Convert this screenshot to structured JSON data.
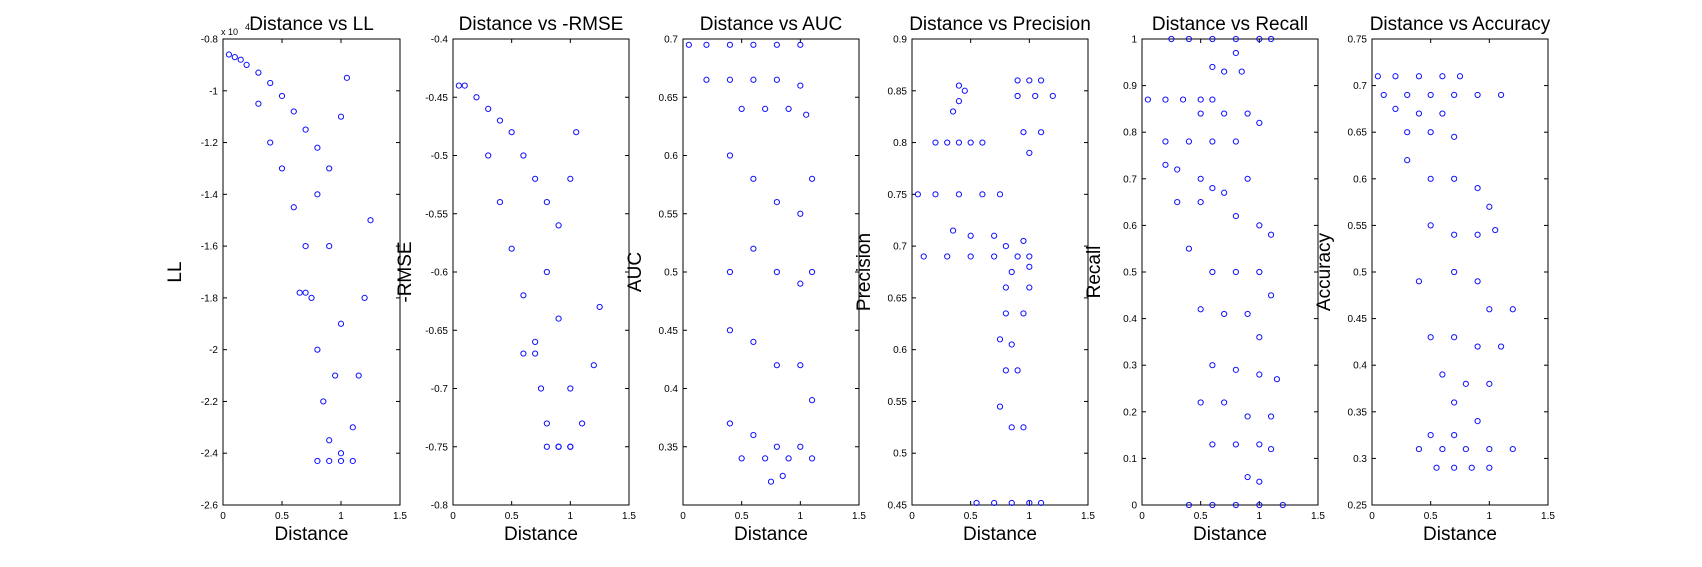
{
  "chart_data": [
    {
      "type": "scatter",
      "title": "Distance vs LL",
      "xlabel": "Distance",
      "ylabel": "LL",
      "y_multiplier_label": "x 10",
      "y_multiplier_exponent": "4",
      "xlim": [
        0,
        1.5
      ],
      "ylim": [
        -2.6,
        -0.8
      ],
      "xticks": [
        "0",
        "0.5",
        "1",
        "1.5"
      ],
      "yticks": [
        "-0.8",
        "-1",
        "-1.2",
        "-1.4",
        "-1.6",
        "-1.8",
        "-2",
        "-2.2",
        "-2.4",
        "-2.6"
      ],
      "color": "#1010ff",
      "grid": false,
      "points": [
        [
          0.05,
          -0.86
        ],
        [
          0.1,
          -0.87
        ],
        [
          0.15,
          -0.88
        ],
        [
          0.2,
          -0.9
        ],
        [
          0.3,
          -0.93
        ],
        [
          0.4,
          -0.97
        ],
        [
          0.5,
          -1.02
        ],
        [
          0.6,
          -1.08
        ],
        [
          0.7,
          -1.15
        ],
        [
          0.8,
          -1.22
        ],
        [
          0.9,
          -1.3
        ],
        [
          1.0,
          -1.1
        ],
        [
          1.05,
          -0.95
        ],
        [
          0.3,
          -1.05
        ],
        [
          0.4,
          -1.2
        ],
        [
          0.5,
          -1.3
        ],
        [
          0.6,
          -1.45
        ],
        [
          0.7,
          -1.6
        ],
        [
          0.75,
          -1.8
        ],
        [
          0.8,
          -2.0
        ],
        [
          0.85,
          -2.2
        ],
        [
          0.9,
          -2.35
        ],
        [
          1.0,
          -2.4
        ],
        [
          1.1,
          -2.3
        ],
        [
          1.15,
          -2.1
        ],
        [
          1.2,
          -1.8
        ],
        [
          1.25,
          -1.5
        ],
        [
          0.65,
          -1.78
        ],
        [
          0.7,
          -1.78
        ],
        [
          0.8,
          -1.4
        ],
        [
          0.9,
          -1.6
        ],
        [
          1.0,
          -1.9
        ],
        [
          0.95,
          -2.1
        ],
        [
          0.8,
          -2.43
        ],
        [
          0.9,
          -2.43
        ],
        [
          1.0,
          -2.43
        ],
        [
          1.1,
          -2.43
        ]
      ]
    },
    {
      "type": "scatter",
      "title": "Distance vs -RMSE",
      "xlabel": "Distance",
      "ylabel": "-RMSE",
      "xlim": [
        0,
        1.5
      ],
      "ylim": [
        -0.8,
        -0.4
      ],
      "xticks": [
        "0",
        "0.5",
        "1",
        "1.5"
      ],
      "yticks": [
        "-0.4",
        "-0.45",
        "-0.5",
        "-0.55",
        "-0.6",
        "-0.65",
        "-0.7",
        "-0.75",
        "-0.8"
      ],
      "color": "#1010ff",
      "grid": false,
      "points": [
        [
          0.05,
          -0.44
        ],
        [
          0.1,
          -0.44
        ],
        [
          0.2,
          -0.45
        ],
        [
          0.3,
          -0.46
        ],
        [
          0.4,
          -0.47
        ],
        [
          0.5,
          -0.48
        ],
        [
          0.6,
          -0.5
        ],
        [
          0.7,
          -0.52
        ],
        [
          0.8,
          -0.54
        ],
        [
          0.9,
          -0.56
        ],
        [
          1.0,
          -0.52
        ],
        [
          1.05,
          -0.48
        ],
        [
          0.3,
          -0.5
        ],
        [
          0.4,
          -0.54
        ],
        [
          0.5,
          -0.58
        ],
        [
          0.6,
          -0.62
        ],
        [
          0.7,
          -0.66
        ],
        [
          0.75,
          -0.7
        ],
        [
          0.8,
          -0.73
        ],
        [
          0.9,
          -0.75
        ],
        [
          1.0,
          -0.75
        ],
        [
          1.1,
          -0.73
        ],
        [
          1.2,
          -0.68
        ],
        [
          1.25,
          -0.63
        ],
        [
          0.6,
          -0.67
        ],
        [
          0.7,
          -0.67
        ],
        [
          0.8,
          -0.6
        ],
        [
          0.9,
          -0.64
        ],
        [
          1.0,
          -0.7
        ],
        [
          0.8,
          -0.75
        ],
        [
          0.9,
          -0.75
        ],
        [
          1.0,
          -0.75
        ]
      ]
    },
    {
      "type": "scatter",
      "title": "Distance vs AUC",
      "xlabel": "Distance",
      "ylabel": "AUC",
      "xlim": [
        0,
        1.5
      ],
      "ylim": [
        0.3,
        0.7
      ],
      "xticks": [
        "0",
        "0.5",
        "1",
        "1.5"
      ],
      "yticks": [
        "0.7",
        "0.65",
        "0.6",
        "0.55",
        "0.5",
        "0.45",
        "0.4",
        "0.35"
      ],
      "color": "#1010ff",
      "grid": false,
      "points": [
        [
          0.05,
          0.695
        ],
        [
          0.2,
          0.695
        ],
        [
          0.4,
          0.695
        ],
        [
          0.6,
          0.695
        ],
        [
          0.8,
          0.695
        ],
        [
          1.0,
          0.695
        ],
        [
          0.2,
          0.665
        ],
        [
          0.4,
          0.665
        ],
        [
          0.6,
          0.665
        ],
        [
          0.8,
          0.665
        ],
        [
          1.0,
          0.66
        ],
        [
          0.5,
          0.64
        ],
        [
          0.7,
          0.64
        ],
        [
          0.9,
          0.64
        ],
        [
          1.05,
          0.635
        ],
        [
          0.4,
          0.6
        ],
        [
          0.6,
          0.58
        ],
        [
          0.8,
          0.56
        ],
        [
          1.0,
          0.55
        ],
        [
          1.1,
          0.58
        ],
        [
          0.4,
          0.5
        ],
        [
          0.6,
          0.52
        ],
        [
          0.8,
          0.5
        ],
        [
          1.0,
          0.49
        ],
        [
          1.1,
          0.5
        ],
        [
          0.4,
          0.45
        ],
        [
          0.6,
          0.44
        ],
        [
          0.8,
          0.42
        ],
        [
          1.0,
          0.42
        ],
        [
          1.1,
          0.39
        ],
        [
          0.4,
          0.37
        ],
        [
          0.6,
          0.36
        ],
        [
          0.8,
          0.35
        ],
        [
          1.0,
          0.35
        ],
        [
          1.1,
          0.34
        ],
        [
          0.5,
          0.34
        ],
        [
          0.7,
          0.34
        ],
        [
          0.9,
          0.34
        ],
        [
          0.75,
          0.32
        ],
        [
          0.85,
          0.325
        ]
      ]
    },
    {
      "type": "scatter",
      "title": "Distance vs Precision",
      "xlabel": "Distance",
      "ylabel": "Precision",
      "xlim": [
        0,
        1.5
      ],
      "ylim": [
        0.45,
        0.9
      ],
      "xticks": [
        "0",
        "0.5",
        "1",
        "1.5"
      ],
      "yticks": [
        "0.9",
        "0.85",
        "0.8",
        "0.75",
        "0.7",
        "0.65",
        "0.6",
        "0.55",
        "0.5",
        "0.45"
      ],
      "color": "#1010ff",
      "grid": false,
      "points": [
        [
          0.4,
          0.855
        ],
        [
          0.45,
          0.85
        ],
        [
          0.4,
          0.84
        ],
        [
          0.35,
          0.83
        ],
        [
          0.2,
          0.8
        ],
        [
          0.3,
          0.8
        ],
        [
          0.4,
          0.8
        ],
        [
          0.5,
          0.8
        ],
        [
          0.6,
          0.8
        ],
        [
          0.9,
          0.86
        ],
        [
          1.0,
          0.86
        ],
        [
          1.1,
          0.86
        ],
        [
          0.9,
          0.845
        ],
        [
          1.05,
          0.845
        ],
        [
          1.2,
          0.845
        ],
        [
          0.95,
          0.81
        ],
        [
          1.1,
          0.81
        ],
        [
          1.0,
          0.79
        ],
        [
          0.05,
          0.75
        ],
        [
          0.2,
          0.75
        ],
        [
          0.4,
          0.75
        ],
        [
          0.6,
          0.75
        ],
        [
          0.75,
          0.75
        ],
        [
          0.35,
          0.715
        ],
        [
          0.5,
          0.71
        ],
        [
          0.7,
          0.71
        ],
        [
          0.1,
          0.69
        ],
        [
          0.3,
          0.69
        ],
        [
          0.5,
          0.69
        ],
        [
          0.7,
          0.69
        ],
        [
          0.9,
          0.69
        ],
        [
          1.0,
          0.69
        ],
        [
          0.8,
          0.7
        ],
        [
          0.95,
          0.705
        ],
        [
          0.85,
          0.675
        ],
        [
          1.0,
          0.68
        ],
        [
          0.8,
          0.66
        ],
        [
          1.0,
          0.66
        ],
        [
          0.8,
          0.635
        ],
        [
          0.95,
          0.635
        ],
        [
          0.75,
          0.61
        ],
        [
          0.85,
          0.605
        ],
        [
          0.8,
          0.58
        ],
        [
          0.9,
          0.58
        ],
        [
          0.75,
          0.545
        ],
        [
          0.85,
          0.525
        ],
        [
          0.95,
          0.525
        ],
        [
          0.55,
          0.452
        ],
        [
          0.7,
          0.452
        ],
        [
          0.85,
          0.452
        ],
        [
          1.0,
          0.452
        ],
        [
          1.1,
          0.452
        ]
      ]
    },
    {
      "type": "scatter",
      "title": "Distance vs Recall",
      "xlabel": "Distance",
      "ylabel": "Recall",
      "xlim": [
        0,
        1.5
      ],
      "ylim": [
        0,
        1
      ],
      "xticks": [
        "0",
        "0.5",
        "1",
        "1.5"
      ],
      "yticks": [
        "1",
        "0.9",
        "0.8",
        "0.7",
        "0.6",
        "0.5",
        "0.4",
        "0.3",
        "0.2",
        "0.1",
        "0"
      ],
      "color": "#1010ff",
      "grid": false,
      "points": [
        [
          0.25,
          1.0
        ],
        [
          0.4,
          1.0
        ],
        [
          0.6,
          1.0
        ],
        [
          0.8,
          1.0
        ],
        [
          1.0,
          1.0
        ],
        [
          1.1,
          1.0
        ],
        [
          0.8,
          0.97
        ],
        [
          0.6,
          0.94
        ],
        [
          0.7,
          0.93
        ],
        [
          0.85,
          0.93
        ],
        [
          0.05,
          0.87
        ],
        [
          0.2,
          0.87
        ],
        [
          0.35,
          0.87
        ],
        [
          0.5,
          0.87
        ],
        [
          0.6,
          0.87
        ],
        [
          0.5,
          0.84
        ],
        [
          0.7,
          0.84
        ],
        [
          0.9,
          0.84
        ],
        [
          1.0,
          0.82
        ],
        [
          0.2,
          0.78
        ],
        [
          0.4,
          0.78
        ],
        [
          0.6,
          0.78
        ],
        [
          0.8,
          0.78
        ],
        [
          0.2,
          0.73
        ],
        [
          0.3,
          0.72
        ],
        [
          0.5,
          0.7
        ],
        [
          0.6,
          0.68
        ],
        [
          0.7,
          0.67
        ],
        [
          0.9,
          0.7
        ],
        [
          0.3,
          0.65
        ],
        [
          0.5,
          0.65
        ],
        [
          0.8,
          0.62
        ],
        [
          1.0,
          0.6
        ],
        [
          1.1,
          0.58
        ],
        [
          0.4,
          0.55
        ],
        [
          0.6,
          0.5
        ],
        [
          0.8,
          0.5
        ],
        [
          1.0,
          0.5
        ],
        [
          1.1,
          0.45
        ],
        [
          0.5,
          0.42
        ],
        [
          0.7,
          0.41
        ],
        [
          0.9,
          0.41
        ],
        [
          1.0,
          0.36
        ],
        [
          0.6,
          0.3
        ],
        [
          0.8,
          0.29
        ],
        [
          1.0,
          0.28
        ],
        [
          1.15,
          0.27
        ],
        [
          0.5,
          0.22
        ],
        [
          0.7,
          0.22
        ],
        [
          0.9,
          0.19
        ],
        [
          1.1,
          0.19
        ],
        [
          0.6,
          0.13
        ],
        [
          0.8,
          0.13
        ],
        [
          1.0,
          0.13
        ],
        [
          1.1,
          0.12
        ],
        [
          0.9,
          0.06
        ],
        [
          1.0,
          0.05
        ],
        [
          0.4,
          0.0
        ],
        [
          0.6,
          0.0
        ],
        [
          0.8,
          0.0
        ],
        [
          1.0,
          0.0
        ],
        [
          1.2,
          0.0
        ]
      ]
    },
    {
      "type": "scatter",
      "title": "Distance vs Accuracy",
      "xlabel": "Distance",
      "ylabel": "Accuracy",
      "xlim": [
        0,
        1.5
      ],
      "ylim": [
        0.25,
        0.75
      ],
      "xticks": [
        "0",
        "0.5",
        "1",
        "1.5"
      ],
      "yticks": [
        "0.75",
        "0.7",
        "0.65",
        "0.6",
        "0.55",
        "0.5",
        "0.45",
        "0.4",
        "0.35",
        "0.3",
        "0.25"
      ],
      "color": "#1010ff",
      "grid": false,
      "points": [
        [
          0.05,
          0.71
        ],
        [
          0.2,
          0.71
        ],
        [
          0.4,
          0.71
        ],
        [
          0.6,
          0.71
        ],
        [
          0.75,
          0.71
        ],
        [
          0.1,
          0.69
        ],
        [
          0.3,
          0.69
        ],
        [
          0.5,
          0.69
        ],
        [
          0.7,
          0.69
        ],
        [
          0.9,
          0.69
        ],
        [
          1.1,
          0.69
        ],
        [
          0.2,
          0.675
        ],
        [
          0.4,
          0.67
        ],
        [
          0.6,
          0.67
        ],
        [
          0.3,
          0.65
        ],
        [
          0.5,
          0.65
        ],
        [
          0.7,
          0.645
        ],
        [
          0.3,
          0.62
        ],
        [
          0.5,
          0.6
        ],
        [
          0.7,
          0.6
        ],
        [
          0.9,
          0.59
        ],
        [
          1.0,
          0.57
        ],
        [
          0.5,
          0.55
        ],
        [
          0.7,
          0.54
        ],
        [
          0.9,
          0.54
        ],
        [
          1.05,
          0.545
        ],
        [
          0.4,
          0.49
        ],
        [
          0.7,
          0.5
        ],
        [
          0.9,
          0.49
        ],
        [
          1.0,
          0.46
        ],
        [
          1.2,
          0.46
        ],
        [
          0.5,
          0.43
        ],
        [
          0.7,
          0.43
        ],
        [
          0.9,
          0.42
        ],
        [
          1.1,
          0.42
        ],
        [
          0.6,
          0.39
        ],
        [
          0.8,
          0.38
        ],
        [
          1.0,
          0.38
        ],
        [
          0.7,
          0.36
        ],
        [
          0.9,
          0.34
        ],
        [
          0.5,
          0.325
        ],
        [
          0.7,
          0.325
        ],
        [
          0.4,
          0.31
        ],
        [
          0.6,
          0.31
        ],
        [
          0.8,
          0.31
        ],
        [
          1.0,
          0.31
        ],
        [
          1.2,
          0.31
        ],
        [
          0.55,
          0.29
        ],
        [
          0.7,
          0.29
        ],
        [
          0.85,
          0.29
        ],
        [
          1.0,
          0.29
        ]
      ]
    }
  ]
}
